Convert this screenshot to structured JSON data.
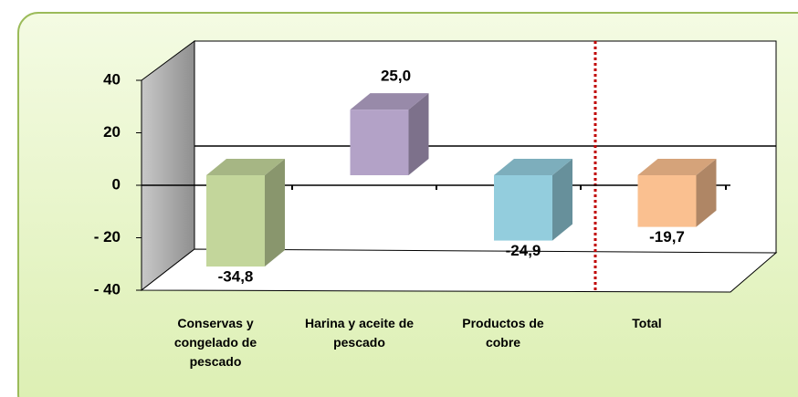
{
  "chart_data": {
    "type": "bar3d",
    "categories": [
      "Conservas y congelado de pescado",
      "Harina y aceite de pescado",
      "Productos de cobre",
      "Total"
    ],
    "values": [
      -34.8,
      25.0,
      -24.9,
      -19.7
    ],
    "value_labels": [
      "-34,8",
      "25,0",
      "-24,9",
      "-19,7"
    ],
    "colors": [
      "#c3d69b",
      "#b3a2c7",
      "#93cddd",
      "#fac090"
    ],
    "ylim": [
      -40,
      40
    ],
    "yticks": [
      40,
      20,
      0,
      {
        "value": -20,
        "label": "- 20"
      },
      {
        "value": -40,
        "label": "- 40"
      }
    ]
  }
}
